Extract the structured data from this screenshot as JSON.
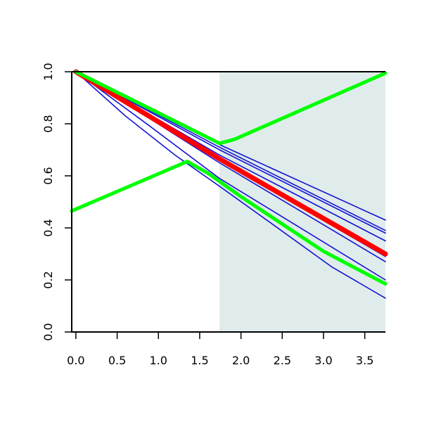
{
  "chart_data": {
    "type": "line",
    "title": "",
    "xlabel": "",
    "ylabel": "",
    "xlim": [
      -0.05,
      3.75
    ],
    "ylim": [
      0.0,
      1.0
    ],
    "x_ticks": [
      "0.0",
      "0.5",
      "1.0",
      "1.5",
      "2.0",
      "2.5",
      "3.0",
      "3.5"
    ],
    "y_ticks": [
      "0.0",
      "0.2",
      "0.4",
      "0.6",
      "0.8",
      "1.0"
    ],
    "grid": false,
    "legend": "none",
    "shaded_region": {
      "x_from": 1.74,
      "x_to": 3.75,
      "color": "#e0eceb"
    },
    "colors": {
      "blue": "#1414d2",
      "red": "#ff0000",
      "green": "#00ff00",
      "shade": "#e0eceb"
    },
    "series": [
      {
        "color": "#1414d2",
        "width": 1.6,
        "points": [
          [
            0,
            1.0
          ],
          [
            1.74,
            0.72
          ],
          [
            3.75,
            0.43
          ]
        ]
      },
      {
        "color": "#1414d2",
        "width": 1.6,
        "points": [
          [
            0,
            1.0
          ],
          [
            1.74,
            0.71
          ],
          [
            3.75,
            0.39
          ]
        ]
      },
      {
        "color": "#1414d2",
        "width": 1.6,
        "points": [
          [
            0,
            1.0
          ],
          [
            1.74,
            0.7
          ],
          [
            3.75,
            0.38
          ]
        ]
      },
      {
        "color": "#1414d2",
        "width": 1.6,
        "points": [
          [
            0,
            1.0
          ],
          [
            1.74,
            0.68
          ],
          [
            3.75,
            0.35
          ]
        ]
      },
      {
        "color": "#1414d2",
        "width": 1.6,
        "points": [
          [
            0,
            1.0
          ],
          [
            1.74,
            0.66
          ],
          [
            3.75,
            0.29
          ]
        ]
      },
      {
        "color": "#1414d2",
        "width": 1.6,
        "points": [
          [
            0,
            1.0
          ],
          [
            1.74,
            0.65
          ],
          [
            3.75,
            0.27
          ]
        ]
      },
      {
        "color": "#1414d2",
        "width": 1.6,
        "points": [
          [
            0,
            1.0
          ],
          [
            0.9,
            0.79
          ],
          [
            1.74,
            0.59
          ],
          [
            3.75,
            0.2
          ]
        ]
      },
      {
        "color": "#1414d2",
        "width": 1.6,
        "points": [
          [
            0,
            1.0
          ],
          [
            0.6,
            0.83
          ],
          [
            1.2,
            0.68
          ],
          [
            1.74,
            0.56
          ],
          [
            2.4,
            0.41
          ],
          [
            3.1,
            0.25
          ],
          [
            3.75,
            0.13
          ]
        ]
      },
      {
        "color": "#ff0000",
        "width": 7,
        "points": [
          [
            0,
            1.0
          ],
          [
            1.74,
            0.665
          ],
          [
            3.75,
            0.3
          ]
        ]
      },
      {
        "color": "#00ff00",
        "width": 5,
        "points": [
          [
            0,
            1.0
          ],
          [
            1.74,
            0.725
          ],
          [
            1.86,
            0.735
          ],
          [
            1.92,
            0.74
          ],
          [
            3.75,
            0.995
          ]
        ]
      },
      {
        "color": "#00ff00",
        "width": 5,
        "points": [
          [
            -0.05,
            0.465
          ],
          [
            1.35,
            0.655
          ],
          [
            1.6,
            0.61
          ],
          [
            2.0,
            0.52
          ],
          [
            2.5,
            0.415
          ],
          [
            3.0,
            0.31
          ],
          [
            3.75,
            0.185
          ]
        ]
      }
    ]
  }
}
